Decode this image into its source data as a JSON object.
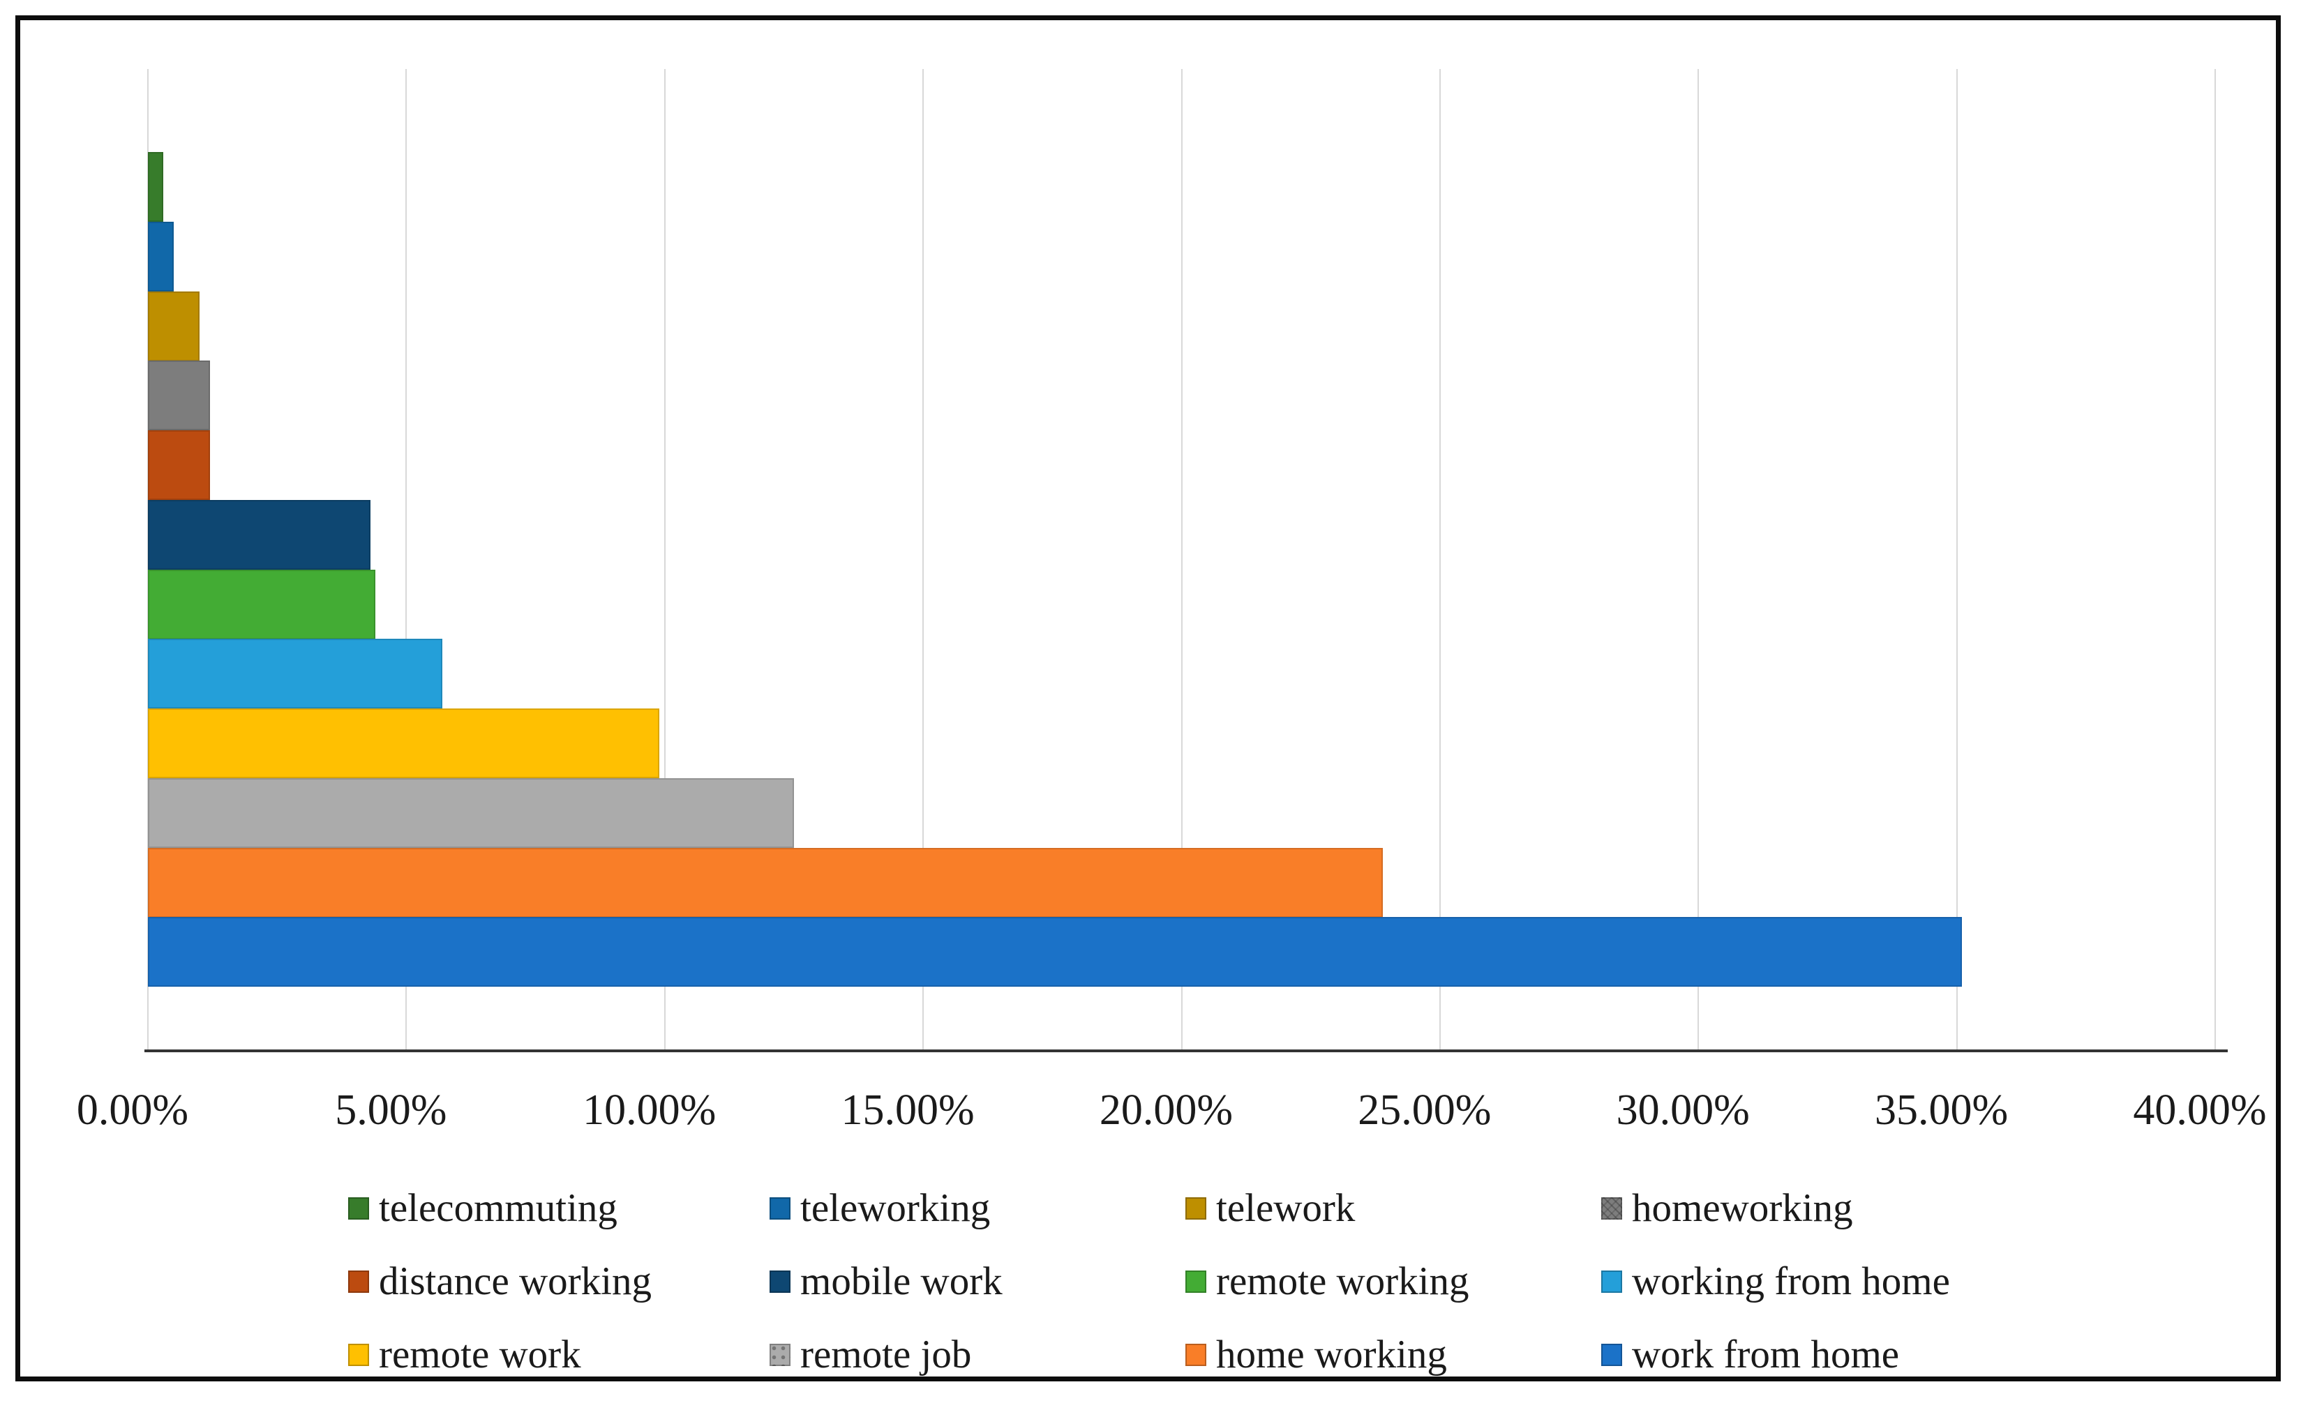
{
  "figure": {
    "background": "#ffffff",
    "border_color": "#0d0d0d",
    "title": ""
  },
  "chart_data": {
    "type": "bar",
    "orientation": "horizontal",
    "title": "",
    "xlabel": "",
    "ylabel": "",
    "xlim": [
      0,
      40
    ],
    "grid": "vertical gridlines on, light gray",
    "legend_position": "bottom, 3 rows x 4 columns",
    "x_axis": {
      "tick_step": 5,
      "tick_values": [
        0,
        5,
        10,
        15,
        20,
        25,
        30,
        35,
        40
      ],
      "tick_labels": [
        "0.00%",
        "5.00%",
        "10.00%",
        "15.00%",
        "20.00%",
        "25.00%",
        "30.00%",
        "35.00%",
        "40.00%"
      ]
    },
    "series": [
      {
        "name": "telecommuting",
        "value": 0.3,
        "color": "#377C2B",
        "pattern": "solid"
      },
      {
        "name": "teleworking",
        "value": 0.5,
        "color": "#1168A9",
        "pattern": "solid"
      },
      {
        "name": "telework",
        "value": 1.0,
        "color": "#BE8F00",
        "pattern": "solid"
      },
      {
        "name": "homeworking",
        "value": 1.2,
        "color": "#7D7D7D",
        "pattern": "zigzag"
      },
      {
        "name": "distance working",
        "value": 1.2,
        "color": "#BC4B10",
        "pattern": "solid"
      },
      {
        "name": "mobile work",
        "value": 4.3,
        "color": "#0E4772",
        "pattern": "solid"
      },
      {
        "name": "remote working",
        "value": 4.4,
        "color": "#43AC34",
        "pattern": "solid"
      },
      {
        "name": "working from home",
        "value": 5.7,
        "color": "#249FD9",
        "pattern": "solid"
      },
      {
        "name": "remote work",
        "value": 9.9,
        "color": "#FFC001",
        "pattern": "solid"
      },
      {
        "name": "remote job",
        "value": 12.5,
        "color": "#ABABAB",
        "pattern": "dots"
      },
      {
        "name": "home working",
        "value": 23.9,
        "color": "#F97E28",
        "pattern": "solid"
      },
      {
        "name": "work from home",
        "value": 35.1,
        "color": "#1B72C8",
        "pattern": "solid"
      }
    ],
    "bar_order_top_to_bottom": [
      "telecommuting",
      "teleworking",
      "telework",
      "homeworking",
      "distance working",
      "mobile work",
      "remote working",
      "working from home",
      "remote work",
      "remote job",
      "home working",
      "work from home"
    ],
    "legend_rows": [
      [
        0,
        1,
        2,
        3
      ],
      [
        4,
        5,
        6,
        7
      ],
      [
        8,
        9,
        10,
        11
      ]
    ]
  }
}
